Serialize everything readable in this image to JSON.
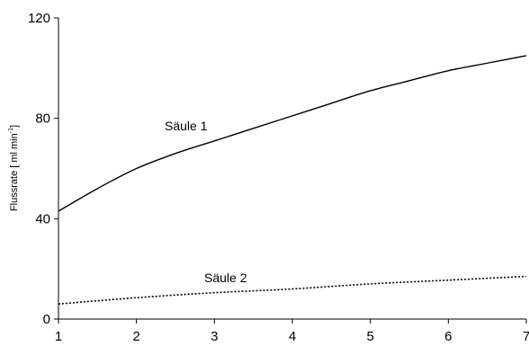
{
  "chart_data": {
    "type": "line",
    "xlabel": "",
    "ylabel_main": "Flussrate [ ml min",
    "ylabel_sup": "-1",
    "ylabel_close": "]",
    "xlim": [
      1,
      7
    ],
    "ylim": [
      0,
      120
    ],
    "x_ticks": [
      "1",
      "2",
      "3",
      "4",
      "5",
      "6",
      "7"
    ],
    "y_ticks": [
      "0",
      "40",
      "80",
      "120"
    ],
    "grid": false,
    "series": [
      {
        "name": "Säule 1",
        "style": "solid",
        "color": "#000000",
        "x": [
          1,
          1.5,
          2,
          2.5,
          3,
          3.5,
          4,
          4.5,
          5,
          5.5,
          6,
          6.5,
          7
        ],
        "y": [
          43,
          52,
          60,
          66,
          71,
          76,
          81,
          86,
          91,
          95,
          99,
          102,
          105
        ]
      },
      {
        "name": "Säule 2",
        "style": "dotted",
        "color": "#000000",
        "x": [
          1,
          2,
          3,
          4,
          5,
          6,
          7
        ],
        "y": [
          6,
          8.5,
          10.5,
          12,
          14,
          15.5,
          17
        ]
      }
    ]
  }
}
